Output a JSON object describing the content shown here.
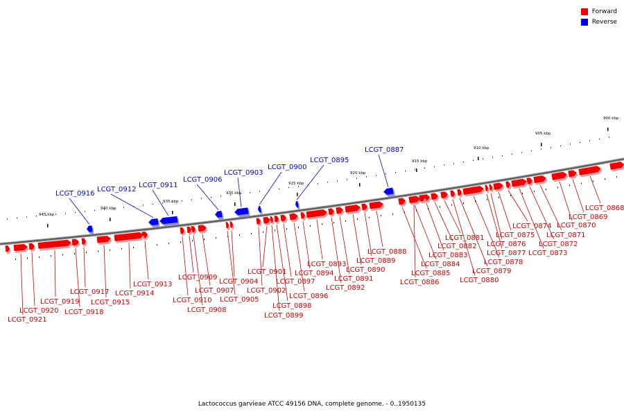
{
  "legend": [
    {
      "label": "Forward",
      "color": "#ee0000"
    },
    {
      "label": "Reverse",
      "color": "#0000ee"
    }
  ],
  "caption": "Lactococcus garvieae ATCC 49156 DNA, complete genome. - 0..1950135",
  "kbp_labels": [
    "900 kbp",
    "905 kbp",
    "910 kbp",
    "915 kbp",
    "920 kbp",
    "925 kbp",
    "930 kbp",
    "935 kbp",
    "940 kbp",
    "945 kbp"
  ],
  "genes": [
    {
      "name": "LCGT_0868",
      "strand": "forward"
    },
    {
      "name": "LCGT_0869",
      "strand": "forward"
    },
    {
      "name": "LCGT_0870",
      "strand": "forward"
    },
    {
      "name": "LCGT_0871",
      "strand": "forward"
    },
    {
      "name": "LCGT_0872",
      "strand": "forward"
    },
    {
      "name": "LCGT_0873",
      "strand": "forward"
    },
    {
      "name": "LCGT_0874",
      "strand": "forward"
    },
    {
      "name": "LCGT_0875",
      "strand": "forward"
    },
    {
      "name": "LCGT_0876",
      "strand": "forward"
    },
    {
      "name": "LCGT_0877",
      "strand": "forward"
    },
    {
      "name": "LCGT_0878",
      "strand": "forward"
    },
    {
      "name": "LCGT_0879",
      "strand": "forward"
    },
    {
      "name": "LCGT_0880",
      "strand": "forward"
    },
    {
      "name": "LCGT_0881",
      "strand": "forward"
    },
    {
      "name": "LCGT_0882",
      "strand": "forward"
    },
    {
      "name": "LCGT_0883",
      "strand": "forward"
    },
    {
      "name": "LCGT_0884",
      "strand": "forward"
    },
    {
      "name": "LCGT_0885",
      "strand": "forward"
    },
    {
      "name": "LCGT_0886",
      "strand": "forward"
    },
    {
      "name": "LCGT_0887",
      "strand": "reverse"
    },
    {
      "name": "LCGT_0888",
      "strand": "forward"
    },
    {
      "name": "LCGT_0889",
      "strand": "forward"
    },
    {
      "name": "LCGT_0890",
      "strand": "forward"
    },
    {
      "name": "LCGT_0891",
      "strand": "forward"
    },
    {
      "name": "LCGT_0892",
      "strand": "forward"
    },
    {
      "name": "LCGT_0893",
      "strand": "forward"
    },
    {
      "name": "LCGT_0894",
      "strand": "forward"
    },
    {
      "name": "LCGT_0895",
      "strand": "reverse"
    },
    {
      "name": "LCGT_0896",
      "strand": "forward"
    },
    {
      "name": "LCGT_0897",
      "strand": "forward"
    },
    {
      "name": "LCGT_0898",
      "strand": "forward"
    },
    {
      "name": "LCGT_0899",
      "strand": "forward"
    },
    {
      "name": "LCGT_0900",
      "strand": "reverse"
    },
    {
      "name": "LCGT_0901",
      "strand": "forward"
    },
    {
      "name": "LCGT_0902",
      "strand": "forward"
    },
    {
      "name": "LCGT_0903",
      "strand": "reverse"
    },
    {
      "name": "LCGT_0904",
      "strand": "forward"
    },
    {
      "name": "LCGT_0905",
      "strand": "forward"
    },
    {
      "name": "LCGT_0906",
      "strand": "reverse"
    },
    {
      "name": "LCGT_0907",
      "strand": "forward"
    },
    {
      "name": "LCGT_0908",
      "strand": "forward"
    },
    {
      "name": "LCGT_0909",
      "strand": "forward"
    },
    {
      "name": "LCGT_0910",
      "strand": "forward"
    },
    {
      "name": "LCGT_0911",
      "strand": "reverse"
    },
    {
      "name": "LCGT_0912",
      "strand": "reverse"
    },
    {
      "name": "LCGT_0913",
      "strand": "forward"
    },
    {
      "name": "LCGT_0914",
      "strand": "forward"
    },
    {
      "name": "LCGT_0915",
      "strand": "forward"
    },
    {
      "name": "LCGT_0916",
      "strand": "reverse"
    },
    {
      "name": "LCGT_0917",
      "strand": "forward"
    },
    {
      "name": "LCGT_0918",
      "strand": "forward"
    },
    {
      "name": "LCGT_0919",
      "strand": "forward"
    },
    {
      "name": "LCGT_0920",
      "strand": "forward"
    },
    {
      "name": "LCGT_0921",
      "strand": "forward"
    }
  ]
}
